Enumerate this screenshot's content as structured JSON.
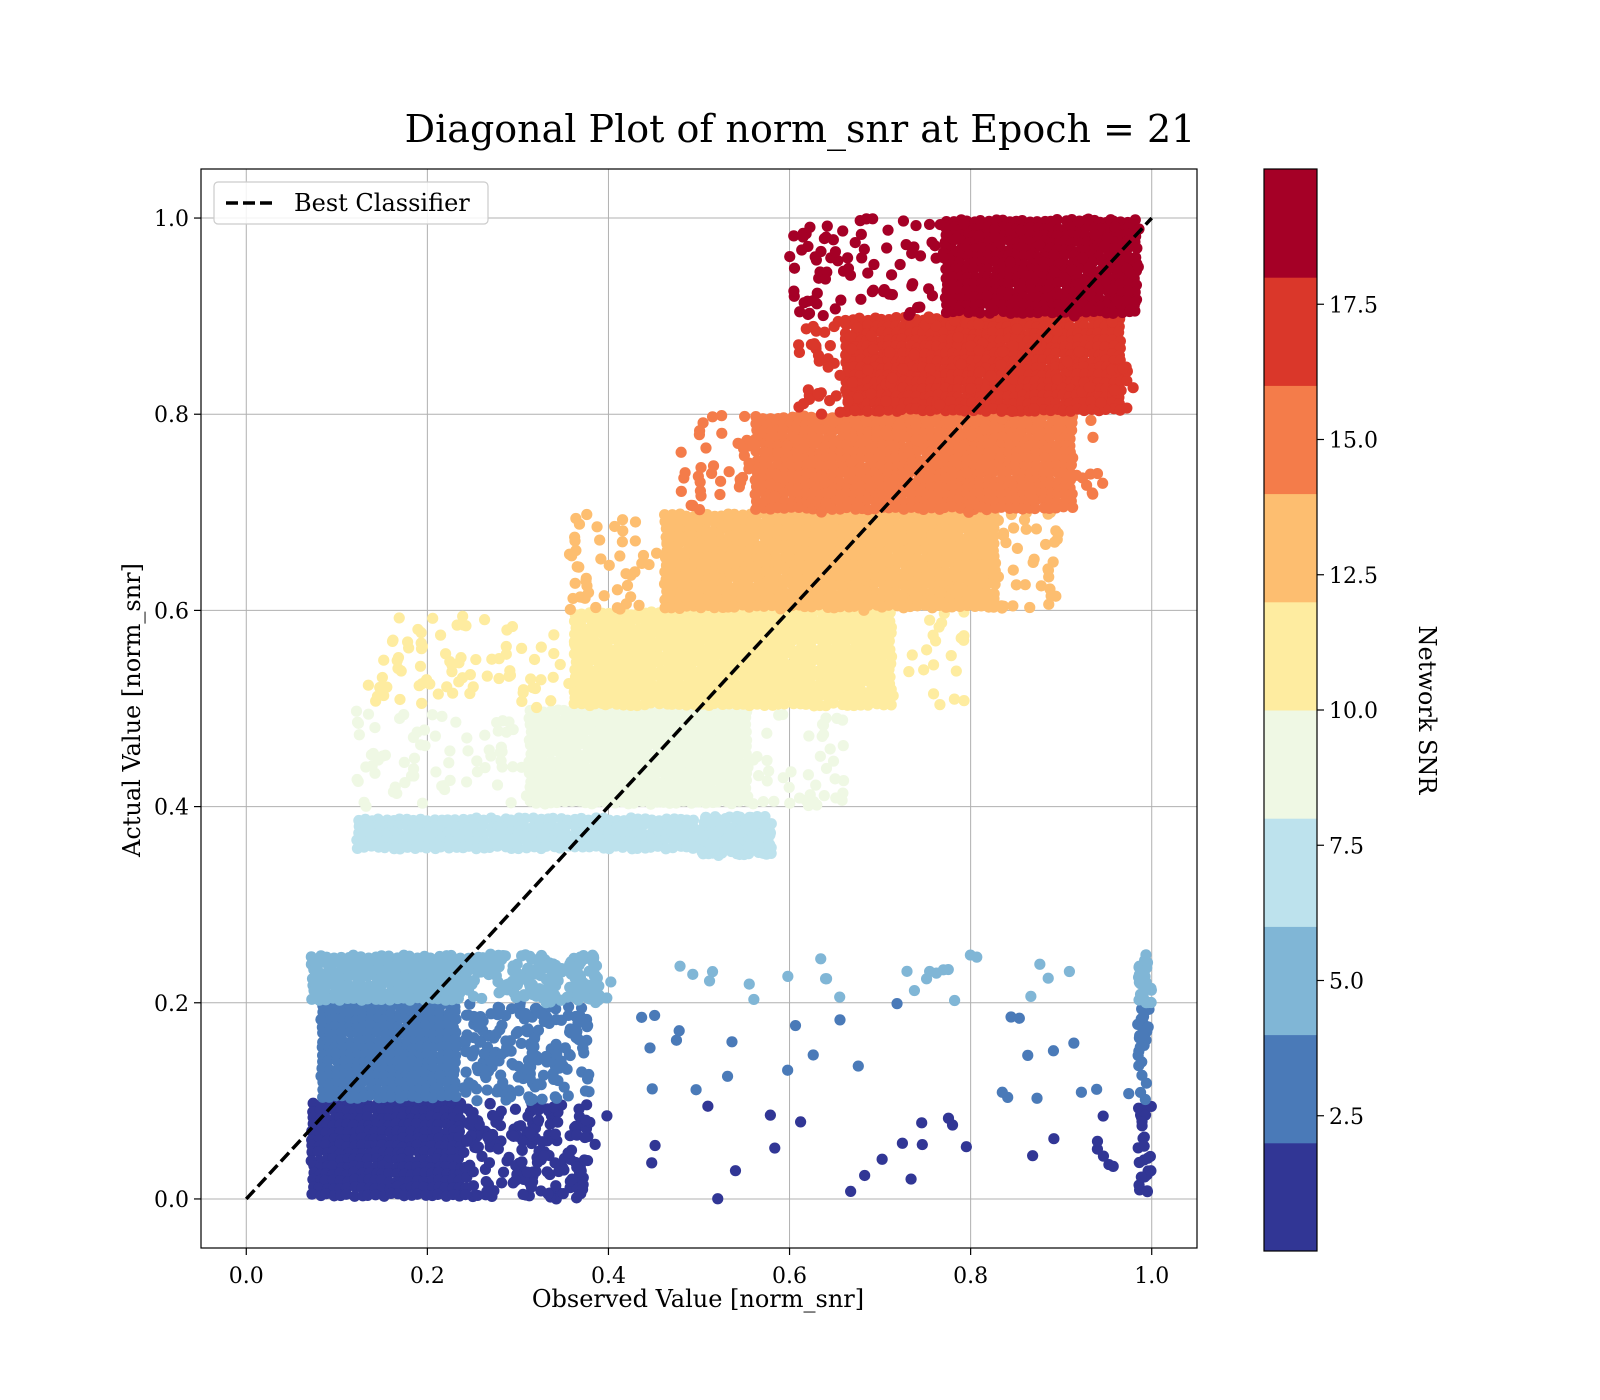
{
  "chart_data": {
    "type": "scatter",
    "title": "Diagonal Plot of norm_snr at Epoch = 21",
    "xlabel": "Observed Value [norm_snr]",
    "ylabel": "Actual Value [norm_snr]",
    "xlim": [
      -0.05,
      1.05
    ],
    "ylim": [
      -0.05,
      1.05
    ],
    "xticks": [
      "0.0",
      "0.2",
      "0.4",
      "0.6",
      "0.8",
      "1.0"
    ],
    "yticks": [
      "0.0",
      "0.2",
      "0.4",
      "0.6",
      "0.8",
      "1.0"
    ],
    "grid": true,
    "legend": {
      "placement": "upper-left",
      "entries": [
        "Best Classifier"
      ]
    },
    "reference_line": {
      "name": "Best Classifier",
      "style": "dashed",
      "color": "#000000",
      "x": [
        0.0,
        1.0
      ],
      "y": [
        0.0,
        1.0
      ]
    },
    "colorbar": {
      "label": "Network SNR",
      "ticks": [
        "2.5",
        "5.0",
        "7.5",
        "10.0",
        "12.5",
        "15.0",
        "17.5"
      ],
      "tick_values": [
        2.5,
        5.0,
        7.5,
        10.0,
        12.5,
        15.0,
        17.5
      ],
      "range": [
        0,
        20
      ],
      "colors": [
        "#313695",
        "#4a7ab8",
        "#80b6d6",
        "#bde2ed",
        "#eff8e4",
        "#feeca0",
        "#fdbe70",
        "#f47c4a",
        "#da372a",
        "#a50026"
      ]
    },
    "bands": [
      {
        "snr_bin": [
          0,
          2
        ],
        "color": "#313695",
        "y_range": [
          0.0,
          0.1
        ],
        "dense_x": [
          0.07,
          0.24
        ],
        "sparse_x": [
          0.24,
          0.38
        ],
        "scatter_x": [
          0.38,
          1.0
        ],
        "edge_x": 0.99
      },
      {
        "snr_bin": [
          2,
          4
        ],
        "color": "#4a7ab8",
        "y_range": [
          0.1,
          0.2
        ],
        "dense_x": [
          0.08,
          0.24
        ],
        "sparse_x": [
          0.24,
          0.38
        ],
        "scatter_x": [
          0.38,
          1.0
        ],
        "edge_x": 0.99
      },
      {
        "snr_bin": [
          4,
          6
        ],
        "color": "#80b6d6",
        "y_range": [
          0.2,
          0.25
        ],
        "dense_x": [
          0.07,
          0.24
        ],
        "sparse_x": [
          0.24,
          0.39
        ],
        "scatter_x": [
          0.39,
          1.0
        ],
        "edge_x": 0.99
      },
      {
        "snr_bin": [
          6,
          8
        ],
        "color": "#bde2ed",
        "y_range": [
          0.35,
          0.39
        ],
        "dense_x": [
          0.12,
          0.5
        ],
        "sparse_x": [
          0.5,
          0.58
        ],
        "scatter_x": [
          0.58,
          0.58
        ],
        "edge_x": 0
      },
      {
        "snr_bin": [
          8,
          10
        ],
        "color": "#eff8e4",
        "y_range": [
          0.4,
          0.5
        ],
        "dense_x": [
          0.31,
          0.56
        ],
        "sparse_x": [
          0.12,
          0.66
        ],
        "scatter_x": [
          0.12,
          0.66
        ],
        "edge_x": 0
      },
      {
        "snr_bin": [
          10,
          12
        ],
        "color": "#feeca0",
        "y_range": [
          0.5,
          0.6
        ],
        "dense_x": [
          0.36,
          0.72
        ],
        "sparse_x": [
          0.13,
          0.8
        ],
        "scatter_x": [
          0.13,
          0.8
        ],
        "edge_x": 0
      },
      {
        "snr_bin": [
          12,
          14
        ],
        "color": "#fdbe70",
        "y_range": [
          0.6,
          0.7
        ],
        "dense_x": [
          0.46,
          0.83
        ],
        "sparse_x": [
          0.35,
          0.9
        ],
        "scatter_x": [
          0.35,
          0.9
        ],
        "edge_x": 0
      },
      {
        "snr_bin": [
          14,
          16
        ],
        "color": "#f47c4a",
        "y_range": [
          0.7,
          0.8
        ],
        "dense_x": [
          0.56,
          0.92
        ],
        "sparse_x": [
          0.48,
          0.95
        ],
        "scatter_x": [
          0.48,
          0.95
        ],
        "edge_x": 0
      },
      {
        "snr_bin": [
          16,
          18
        ],
        "color": "#da372a",
        "y_range": [
          0.8,
          0.9
        ],
        "dense_x": [
          0.66,
          0.97
        ],
        "sparse_x": [
          0.61,
          0.98
        ],
        "scatter_x": [
          0.61,
          0.98
        ],
        "edge_x": 0
      },
      {
        "snr_bin": [
          18,
          20
        ],
        "color": "#a50026",
        "y_range": [
          0.9,
          1.0
        ],
        "dense_x": [
          0.77,
          0.99
        ],
        "sparse_x": [
          0.6,
          0.99
        ],
        "scatter_x": [
          0.6,
          0.99
        ],
        "edge_x": 0
      }
    ]
  }
}
